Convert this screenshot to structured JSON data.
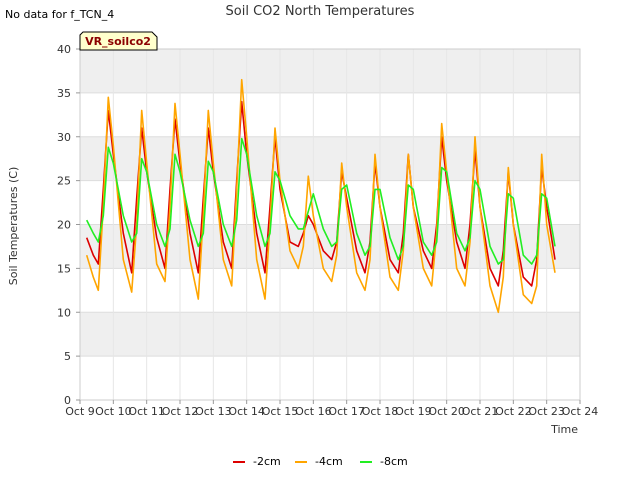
{
  "page": {
    "no_data_note": "No data for f_TCN_4",
    "badge_label": "VR_soilco2"
  },
  "chart_data": {
    "type": "line",
    "title": "Soil CO2 North Temperatures",
    "xlabel": "Time",
    "ylabel": "Soil Temperatures (C)",
    "xlim": [
      "Oct 9",
      "Oct 24"
    ],
    "ylim": [
      0,
      40
    ],
    "x_ticks": [
      "Oct 9",
      "Oct 10",
      "Oct 11",
      "Oct 12",
      "Oct 13",
      "Oct 14",
      "Oct 15",
      "Oct 16",
      "Oct 17",
      "Oct 18",
      "Oct 19",
      "Oct 20",
      "Oct 21",
      "Oct 22",
      "Oct 23",
      "Oct 24"
    ],
    "y_ticks": [
      0,
      5,
      10,
      15,
      20,
      25,
      30,
      35,
      40
    ],
    "grid": true,
    "background_bands": true,
    "legend_position": "bottom-center",
    "series": [
      {
        "name": "-2cm",
        "color": "#dd0000",
        "x": [
          "Oct 9.2",
          "Oct 9.4",
          "Oct 9.55",
          "Oct 9.7",
          "Oct 9.85",
          "Oct 10.0",
          "Oct 10.3",
          "Oct 10.55",
          "Oct 10.7",
          "Oct 10.85",
          "Oct 11.0",
          "Oct 11.3",
          "Oct 11.55",
          "Oct 11.7",
          "Oct 11.85",
          "Oct 12.0",
          "Oct 12.3",
          "Oct 12.55",
          "Oct 12.7",
          "Oct 12.85",
          "Oct 13.0",
          "Oct 13.3",
          "Oct 13.55",
          "Oct 13.7",
          "Oct 13.85",
          "Oct 14.0",
          "Oct 14.3",
          "Oct 14.55",
          "Oct 14.7",
          "Oct 14.85",
          "Oct 15.0",
          "Oct 15.3",
          "Oct 15.55",
          "Oct 15.7",
          "Oct 15.85",
          "Oct 16.0",
          "Oct 16.3",
          "Oct 16.55",
          "Oct 16.7",
          "Oct 16.85",
          "Oct 17.0",
          "Oct 17.3",
          "Oct 17.55",
          "Oct 17.7",
          "Oct 17.85",
          "Oct 18.0",
          "Oct 18.3",
          "Oct 18.55",
          "Oct 18.7",
          "Oct 18.85",
          "Oct 19.0",
          "Oct 19.3",
          "Oct 19.55",
          "Oct 19.7",
          "Oct 19.85",
          "Oct 20.0",
          "Oct 20.3",
          "Oct 20.55",
          "Oct 20.7",
          "Oct 20.85",
          "Oct 21.0",
          "Oct 21.3",
          "Oct 21.55",
          "Oct 21.7",
          "Oct 21.85",
          "Oct 22.0",
          "Oct 22.3",
          "Oct 22.55",
          "Oct 22.7",
          "Oct 22.85",
          "Oct 23.0",
          "Oct 23.25"
        ],
        "values": [
          18.5,
          16.5,
          15.5,
          24,
          33,
          28,
          19,
          14.5,
          23,
          31,
          26,
          18.5,
          15,
          24,
          32,
          27,
          19,
          14.5,
          23,
          31,
          26,
          18,
          15,
          25,
          34,
          28,
          19,
          14.5,
          22,
          30,
          24,
          18,
          17.5,
          19,
          21,
          20,
          17,
          16,
          18,
          26,
          23,
          17,
          14.5,
          18,
          27,
          22,
          16,
          14.5,
          19,
          28,
          22,
          17,
          15,
          20,
          30,
          25,
          18,
          15,
          20,
          28.5,
          22,
          15,
          13,
          17,
          26,
          20,
          14,
          13,
          16,
          26.5,
          22,
          16
        ]
      },
      {
        "name": "-4cm",
        "color": "#ffa500",
        "x": [
          "Oct 9.2",
          "Oct 9.4",
          "Oct 9.55",
          "Oct 9.7",
          "Oct 9.85",
          "Oct 10.0",
          "Oct 10.3",
          "Oct 10.55",
          "Oct 10.7",
          "Oct 10.85",
          "Oct 11.0",
          "Oct 11.3",
          "Oct 11.55",
          "Oct 11.7",
          "Oct 11.85",
          "Oct 12.0",
          "Oct 12.3",
          "Oct 12.55",
          "Oct 12.7",
          "Oct 12.85",
          "Oct 13.0",
          "Oct 13.3",
          "Oct 13.55",
          "Oct 13.7",
          "Oct 13.85",
          "Oct 14.0",
          "Oct 14.3",
          "Oct 14.55",
          "Oct 14.7",
          "Oct 14.85",
          "Oct 15.0",
          "Oct 15.3",
          "Oct 15.55",
          "Oct 15.7",
          "Oct 15.85",
          "Oct 16.0",
          "Oct 16.3",
          "Oct 16.55",
          "Oct 16.7",
          "Oct 16.85",
          "Oct 17.0",
          "Oct 17.3",
          "Oct 17.55",
          "Oct 17.7",
          "Oct 17.85",
          "Oct 18.0",
          "Oct 18.3",
          "Oct 18.55",
          "Oct 18.7",
          "Oct 18.85",
          "Oct 19.0",
          "Oct 19.3",
          "Oct 19.55",
          "Oct 19.7",
          "Oct 19.85",
          "Oct 20.0",
          "Oct 20.3",
          "Oct 20.55",
          "Oct 20.7",
          "Oct 20.85",
          "Oct 21.0",
          "Oct 21.3",
          "Oct 21.55",
          "Oct 21.7",
          "Oct 21.85",
          "Oct 22.0",
          "Oct 22.3",
          "Oct 22.55",
          "Oct 22.7",
          "Oct 22.85",
          "Oct 23.0",
          "Oct 23.25"
        ],
        "values": [
          16.5,
          14,
          12.5,
          22,
          34.5,
          29,
          16,
          12.3,
          20,
          33,
          27,
          15.5,
          13.5,
          22,
          33.8,
          28,
          16,
          11.5,
          21,
          33,
          27,
          16,
          13,
          24,
          36.5,
          30,
          16,
          11.5,
          20,
          31,
          25,
          17,
          15,
          17.5,
          25.5,
          21,
          15,
          13.5,
          16.5,
          27,
          22,
          14.5,
          12.5,
          16,
          28,
          22,
          14,
          12.5,
          17,
          28,
          22,
          15,
          13,
          19,
          31.5,
          26,
          15,
          13,
          18,
          30,
          22,
          13,
          10,
          14,
          26.5,
          20,
          12,
          11,
          13,
          28,
          20,
          14.5
        ]
      },
      {
        "name": "-8cm",
        "color": "#22ee22",
        "x": [
          "Oct 9.2",
          "Oct 9.4",
          "Oct 9.55",
          "Oct 9.7",
          "Oct 9.85",
          "Oct 10.0",
          "Oct 10.3",
          "Oct 10.55",
          "Oct 10.7",
          "Oct 10.85",
          "Oct 11.0",
          "Oct 11.3",
          "Oct 11.55",
          "Oct 11.7",
          "Oct 11.85",
          "Oct 12.0",
          "Oct 12.3",
          "Oct 12.55",
          "Oct 12.7",
          "Oct 12.85",
          "Oct 13.0",
          "Oct 13.3",
          "Oct 13.55",
          "Oct 13.7",
          "Oct 13.85",
          "Oct 14.0",
          "Oct 14.3",
          "Oct 14.55",
          "Oct 14.7",
          "Oct 14.85",
          "Oct 15.0",
          "Oct 15.3",
          "Oct 15.55",
          "Oct 15.7",
          "Oct 15.85",
          "Oct 16.0",
          "Oct 16.3",
          "Oct 16.55",
          "Oct 16.7",
          "Oct 16.85",
          "Oct 17.0",
          "Oct 17.3",
          "Oct 17.55",
          "Oct 17.7",
          "Oct 17.85",
          "Oct 18.0",
          "Oct 18.3",
          "Oct 18.55",
          "Oct 18.7",
          "Oct 18.85",
          "Oct 19.0",
          "Oct 19.3",
          "Oct 19.55",
          "Oct 19.7",
          "Oct 19.85",
          "Oct 20.0",
          "Oct 20.3",
          "Oct 20.55",
          "Oct 20.7",
          "Oct 20.85",
          "Oct 21.0",
          "Oct 21.3",
          "Oct 21.55",
          "Oct 21.7",
          "Oct 21.85",
          "Oct 22.0",
          "Oct 22.3",
          "Oct 22.55",
          "Oct 22.7",
          "Oct 22.85",
          "Oct 23.0",
          "Oct 23.25"
        ],
        "values": [
          20.5,
          19,
          18,
          21,
          28.8,
          27,
          21,
          18,
          19,
          27.5,
          26,
          20,
          17.5,
          19.5,
          28,
          26,
          20.5,
          17.5,
          19,
          27.2,
          26,
          20,
          17.5,
          20.5,
          29.8,
          28,
          21,
          17.5,
          19,
          26,
          25,
          21,
          19.5,
          19.5,
          21.5,
          23.5,
          19.5,
          17.5,
          18,
          24,
          24.5,
          19,
          16.5,
          17.5,
          24,
          24,
          18.5,
          16,
          17.5,
          24.5,
          24,
          18,
          16.5,
          18,
          26.5,
          26,
          19,
          17,
          18.5,
          25,
          24,
          17.5,
          15.5,
          16,
          23.5,
          23,
          16.5,
          15.5,
          16.5,
          23.5,
          23,
          17.5
        ]
      }
    ]
  }
}
